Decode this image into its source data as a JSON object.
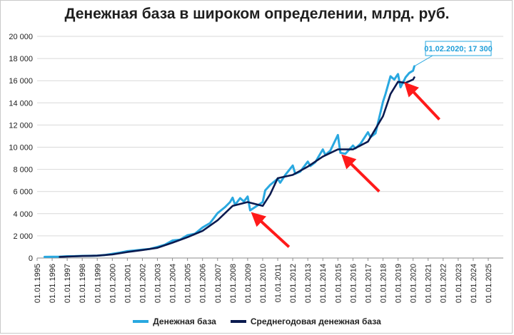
{
  "chart_data": {
    "type": "line",
    "title": "Денежная база в широком определении, млрд. руб.",
    "xlabel": "",
    "ylabel": "",
    "ylim": [
      0,
      20000
    ],
    "xlim": [
      "01.01.1995",
      "01.01.2026"
    ],
    "grid": true,
    "legend_position": "bottom",
    "y_ticks": [
      "0",
      "2 000",
      "4 000",
      "6 000",
      "8 000",
      "10 000",
      "12 000",
      "14 000",
      "16 000",
      "18 000",
      "20 000"
    ],
    "x_ticks": [
      "01.01.1995",
      "01.01.1996",
      "01.01.1997",
      "01.01.1998",
      "01.01.1999",
      "01.01.2000",
      "01.01.2001",
      "01.01.2002",
      "01.01.2003",
      "01.01.2004",
      "01.01.2005",
      "01.01.2006",
      "01.01.2007",
      "01.01.2008",
      "01.01.2009",
      "01.01.2010",
      "01.01.2011",
      "01.01.2012",
      "01.01.2013",
      "01.01.2014",
      "01.01.2015",
      "01.01.2016",
      "01.01.2017",
      "01.01.2018",
      "01.01.2019",
      "01.01.2020",
      "01.01.2021",
      "01.01.2022",
      "01.01.2023",
      "01.01.2024",
      "01.01.2025"
    ],
    "series": [
      {
        "name": "Денежная база",
        "color": "#29a8e0",
        "points": [
          [
            "1995-07",
            100
          ],
          [
            "1996-01",
            110
          ],
          [
            "1996-07",
            120
          ],
          [
            "1997-01",
            160
          ],
          [
            "1997-07",
            170
          ],
          [
            "1998-01",
            190
          ],
          [
            "1998-07",
            200
          ],
          [
            "1999-01",
            220
          ],
          [
            "1999-07",
            270
          ],
          [
            "2000-01",
            380
          ],
          [
            "2000-07",
            480
          ],
          [
            "2001-01",
            620
          ],
          [
            "2001-07",
            680
          ],
          [
            "2002-01",
            760
          ],
          [
            "2002-07",
            820
          ],
          [
            "2003-01",
            1000
          ],
          [
            "2003-07",
            1200
          ],
          [
            "2004-01",
            1580
          ],
          [
            "2004-07",
            1650
          ],
          [
            "2005-01",
            2050
          ],
          [
            "2005-07",
            2200
          ],
          [
            "2006-01",
            2750
          ],
          [
            "2006-07",
            3150
          ],
          [
            "2007-01",
            4050
          ],
          [
            "2007-07",
            4600
          ],
          [
            "2007-11",
            5050
          ],
          [
            "2008-01",
            5450
          ],
          [
            "2008-03",
            4800
          ],
          [
            "2008-07",
            5400
          ],
          [
            "2008-10",
            5100
          ],
          [
            "2009-01",
            5550
          ],
          [
            "2009-03",
            4300
          ],
          [
            "2009-07",
            4600
          ],
          [
            "2010-01",
            5050
          ],
          [
            "2010-03",
            6100
          ],
          [
            "2010-07",
            6600
          ],
          [
            "2011-01",
            7150
          ],
          [
            "2011-03",
            6800
          ],
          [
            "2011-07",
            7500
          ],
          [
            "2012-01",
            8350
          ],
          [
            "2012-03",
            7600
          ],
          [
            "2012-07",
            7800
          ],
          [
            "2013-01",
            8700
          ],
          [
            "2013-03",
            8300
          ],
          [
            "2013-07",
            8650
          ],
          [
            "2014-01",
            9800
          ],
          [
            "2014-03",
            9300
          ],
          [
            "2014-07",
            9700
          ],
          [
            "2015-01",
            11100
          ],
          [
            "2015-03",
            9500
          ],
          [
            "2015-07",
            9400
          ],
          [
            "2016-01",
            10150
          ],
          [
            "2016-03",
            9900
          ],
          [
            "2016-07",
            10300
          ],
          [
            "2017-01",
            11350
          ],
          [
            "2017-03",
            10900
          ],
          [
            "2017-07",
            11250
          ],
          [
            "2018-01",
            14100
          ],
          [
            "2018-03",
            14800
          ],
          [
            "2018-07",
            16400
          ],
          [
            "2018-10",
            16100
          ],
          [
            "2019-01",
            16600
          ],
          [
            "2019-03",
            15400
          ],
          [
            "2019-07",
            16300
          ],
          [
            "2019-10",
            16700
          ],
          [
            "2020-01",
            16900
          ],
          [
            "2020-02",
            17300
          ]
        ]
      },
      {
        "name": "Среднегодовая денежная база",
        "color": "#0a1a4f",
        "points": [
          [
            "1996-07",
            105
          ],
          [
            "1997-01",
            130
          ],
          [
            "1998-01",
            180
          ],
          [
            "1999-01",
            210
          ],
          [
            "2000-01",
            320
          ],
          [
            "2001-01",
            540
          ],
          [
            "2002-01",
            720
          ],
          [
            "2003-01",
            920
          ],
          [
            "2004-01",
            1380
          ],
          [
            "2005-01",
            1880
          ],
          [
            "2006-01",
            2450
          ],
          [
            "2007-01",
            3400
          ],
          [
            "2008-01",
            4700
          ],
          [
            "2009-01",
            5050
          ],
          [
            "2010-01",
            4700
          ],
          [
            "2010-07",
            5750
          ],
          [
            "2011-01",
            7200
          ],
          [
            "2012-01",
            7500
          ],
          [
            "2013-01",
            8250
          ],
          [
            "2014-01",
            9150
          ],
          [
            "2015-01",
            9800
          ],
          [
            "2016-01",
            9800
          ],
          [
            "2017-01",
            10500
          ],
          [
            "2018-01",
            12800
          ],
          [
            "2018-07",
            14800
          ],
          [
            "2019-01",
            15900
          ],
          [
            "2019-07",
            15800
          ],
          [
            "2020-01",
            16100
          ],
          [
            "2020-02",
            16300
          ]
        ]
      }
    ],
    "annotations": [
      {
        "text": "01.02.2020; 17 300",
        "x": "2020-02",
        "y": 17300
      }
    ],
    "arrows": [
      {
        "from": [
          "2011-10",
          1000
        ],
        "to": [
          "2009-07",
          3800
        ]
      },
      {
        "from": [
          "2017-10",
          6000
        ],
        "to": [
          "2015-07",
          9000
        ]
      },
      {
        "from": [
          "2021-10",
          12500
        ],
        "to": [
          "2019-09",
          15500
        ]
      }
    ]
  },
  "legend": {
    "items": [
      {
        "label": "Денежная база",
        "color": "#29a8e0"
      },
      {
        "label": "Среднегодовая денежная база",
        "color": "#0a1a4f"
      }
    ]
  }
}
